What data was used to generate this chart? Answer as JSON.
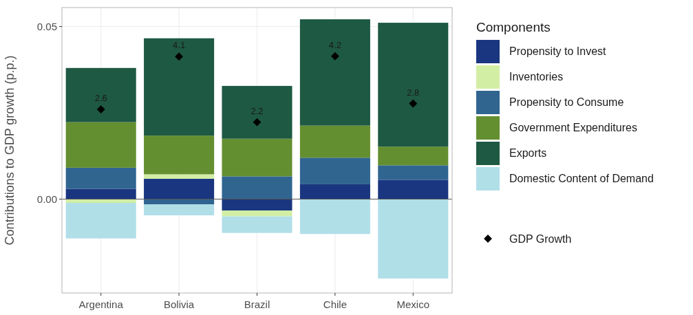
{
  "chart_data": {
    "type": "bar",
    "stacked": true,
    "ylabel": "Contributions to GDP growth (p.p.)",
    "legend_title": "Components",
    "legend": "right",
    "grid": true,
    "categories": [
      "Argentina",
      "Bolivia",
      "Brazil",
      "Chile",
      "Mexico"
    ],
    "ylim": [
      -0.0272,
      0.0555
    ],
    "yticks": [
      {
        "value": 0,
        "label": "0.00"
      },
      {
        "value": 0.05,
        "label": "0.05"
      }
    ],
    "ref_lines": [
      {
        "axis": "y",
        "value": 0,
        "color": "#555555"
      }
    ],
    "series": [
      {
        "name": "Propensity to Invest",
        "color": "#1a3680",
        "values": [
          0.003,
          0.0059,
          -0.0033,
          0.0043,
          0.0056
        ]
      },
      {
        "name": "Inventories",
        "color": "#d2eea5",
        "values": [
          -0.0011,
          0.0013,
          -0.0017,
          0,
          0
        ]
      },
      {
        "name": "Propensity to Consume",
        "color": "#306590",
        "values": [
          0.0061,
          -0.0015,
          0.0066,
          0.0077,
          0.0042
        ]
      },
      {
        "name": "Government Expenditures",
        "color": "#648f30",
        "values": [
          0.0132,
          0.0112,
          0.0109,
          0.0093,
          0.0054
        ]
      },
      {
        "name": "Exports",
        "color": "#1e5943",
        "values": [
          0.0157,
          0.0282,
          0.0153,
          0.0308,
          0.0359
        ]
      },
      {
        "name": "Domestic Content of Demand",
        "color": "#b0dfe8",
        "values": [
          -0.0103,
          -0.0032,
          -0.0048,
          -0.0101,
          -0.023
        ]
      },
      {
        "name": "GDP Growth",
        "type": "scatter",
        "marker": "diamond",
        "color": "#000000",
        "values": [
          0.026,
          0.0413,
          0.0223,
          0.0414,
          0.0277
        ]
      }
    ],
    "annotations": [
      {
        "text": "2.6",
        "x": "Argentina",
        "y": 0.026
      },
      {
        "text": "4.1",
        "x": "Bolivia",
        "y": 0.0413
      },
      {
        "text": "2.2",
        "x": "Brazil",
        "y": 0.0223
      },
      {
        "text": "4.2",
        "x": "Chile",
        "y": 0.0414
      },
      {
        "text": "2.8",
        "x": "Mexico",
        "y": 0.0277
      }
    ]
  }
}
